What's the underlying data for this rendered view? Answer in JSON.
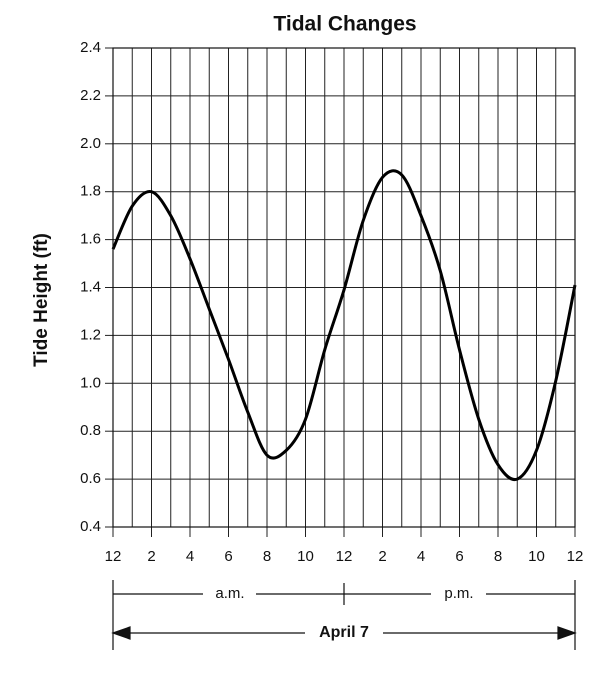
{
  "chart_data": {
    "type": "line",
    "title": "Tidal Changes",
    "y_label": "Tide Height (ft)",
    "x": [
      0,
      1,
      2,
      3,
      4,
      5,
      6,
      7,
      8,
      9,
      10,
      11,
      12,
      13,
      14,
      15,
      16,
      17,
      18,
      19,
      20,
      21,
      22,
      23,
      24
    ],
    "series": [
      {
        "name": "Tide height",
        "color": "#000000",
        "values": [
          1.56,
          1.74,
          1.8,
          1.7,
          1.52,
          1.31,
          1.1,
          0.88,
          0.7,
          0.72,
          0.85,
          1.14,
          1.39,
          1.68,
          1.86,
          1.87,
          1.7,
          1.47,
          1.14,
          0.85,
          0.66,
          0.6,
          0.72,
          1.01,
          1.41
        ]
      }
    ],
    "xlim": [
      0,
      24
    ],
    "xticks": [
      {
        "value": 0,
        "label": "12"
      },
      2,
      4,
      6,
      8,
      10,
      {
        "value": 12,
        "label": "12"
      },
      {
        "value": 14,
        "label": "2"
      },
      {
        "value": 16,
        "label": "4"
      },
      {
        "value": 18,
        "label": "6"
      },
      {
        "value": 20,
        "label": "8"
      },
      {
        "value": 22,
        "label": "10"
      },
      {
        "value": 24,
        "label": "12"
      }
    ],
    "ylim": [
      0.4,
      2.4
    ],
    "yticks": [
      0.4,
      0.6,
      0.8,
      {
        "value": 1,
        "label": "1.0"
      },
      1.2,
      1.4,
      1.6,
      1.8,
      {
        "value": 2,
        "label": "2.0"
      },
      2.2,
      2.4
    ],
    "grid": true,
    "annotations": {
      "am": "a.m.",
      "pm": "p.m.",
      "date": "April 7"
    }
  }
}
